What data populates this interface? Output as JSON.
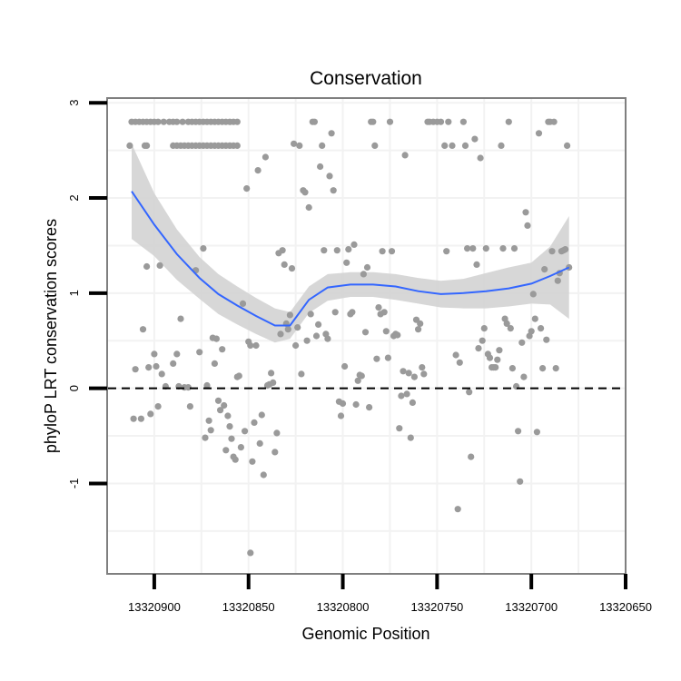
{
  "chart_data": {
    "type": "scatter",
    "title": "Conservation",
    "xlabel": "Genomic Position",
    "ylabel": "phyloP LRT conservation scores",
    "x_reversed": true,
    "xlim": [
      13320925,
      13320650
    ],
    "ylim": [
      -1.95,
      3.05
    ],
    "x_ticks": [
      13320900,
      13320850,
      13320800,
      13320750,
      13320700,
      13320650
    ],
    "x_tick_labels": [
      "13320900",
      "13320850",
      "13320800",
      "13320750",
      "13320700",
      "13320650"
    ],
    "y_ticks": [
      -1,
      0,
      1,
      2,
      3
    ],
    "y_tick_labels": [
      "-1",
      "0",
      "1",
      "2",
      "3"
    ],
    "grid": true,
    "colors": {
      "points": "#9a9a9a",
      "smooth": "#3366ff",
      "ribbon": "#d3d3d3",
      "reference": "#000000",
      "frame": "#7f7f7f",
      "grid": "#f2f2f2"
    },
    "reference_line": {
      "y": 0,
      "style": "dashed"
    },
    "points": [
      [
        13320912,
        2.8
      ],
      [
        13320910,
        2.8
      ],
      [
        13320908,
        2.8
      ],
      [
        13320906,
        2.8
      ],
      [
        13320904,
        2.8
      ],
      [
        13320902,
        2.8
      ],
      [
        13320900,
        2.8
      ],
      [
        13320898,
        2.8
      ],
      [
        13320895,
        2.8
      ],
      [
        13320892,
        2.8
      ],
      [
        13320890,
        2.8
      ],
      [
        13320888,
        2.8
      ],
      [
        13320885,
        2.8
      ],
      [
        13320882,
        2.8
      ],
      [
        13320880,
        2.8
      ],
      [
        13320878,
        2.8
      ],
      [
        13320876,
        2.8
      ],
      [
        13320874,
        2.8
      ],
      [
        13320872,
        2.8
      ],
      [
        13320870,
        2.8
      ],
      [
        13320868,
        2.8
      ],
      [
        13320866,
        2.8
      ],
      [
        13320864,
        2.8
      ],
      [
        13320862,
        2.8
      ],
      [
        13320860,
        2.8
      ],
      [
        13320858,
        2.8
      ],
      [
        13320856,
        2.8
      ],
      [
        13320913,
        2.55
      ],
      [
        13320905,
        2.55
      ],
      [
        13320904,
        2.55
      ],
      [
        13320890,
        2.55
      ],
      [
        13320888,
        2.55
      ],
      [
        13320886,
        2.55
      ],
      [
        13320884,
        2.55
      ],
      [
        13320882,
        2.55
      ],
      [
        13320880,
        2.55
      ],
      [
        13320878,
        2.55
      ],
      [
        13320876,
        2.55
      ],
      [
        13320874,
        2.55
      ],
      [
        13320872,
        2.55
      ],
      [
        13320870,
        2.55
      ],
      [
        13320868,
        2.55
      ],
      [
        13320866,
        2.55
      ],
      [
        13320864,
        2.55
      ],
      [
        13320862,
        2.55
      ],
      [
        13320860,
        2.55
      ],
      [
        13320858,
        2.55
      ],
      [
        13320856,
        2.55
      ],
      [
        13320911,
        -0.32
      ],
      [
        13320910,
        0.2
      ],
      [
        13320907,
        -0.32
      ],
      [
        13320906,
        0.62
      ],
      [
        13320904,
        1.28
      ],
      [
        13320903,
        0.22
      ],
      [
        13320902,
        -0.27
      ],
      [
        13320900,
        0.36
      ],
      [
        13320899,
        0.23
      ],
      [
        13320898,
        -0.19
      ],
      [
        13320897,
        1.29
      ],
      [
        13320896,
        0.15
      ],
      [
        13320894,
        0.02
      ],
      [
        13320890,
        0.26
      ],
      [
        13320888,
        0.36
      ],
      [
        13320887,
        0.02
      ],
      [
        13320886,
        0.73
      ],
      [
        13320884,
        0.01
      ],
      [
        13320882,
        0.01
      ],
      [
        13320881,
        -0.19
      ],
      [
        13320878,
        1.24
      ],
      [
        13320876,
        0.38
      ],
      [
        13320874,
        1.47
      ],
      [
        13320873,
        -0.52
      ],
      [
        13320872,
        0.03
      ],
      [
        13320871,
        -0.34
      ],
      [
        13320870,
        -0.44
      ],
      [
        13320869,
        0.53
      ],
      [
        13320868,
        0.26
      ],
      [
        13320867,
        0.52
      ],
      [
        13320866,
        -0.13
      ],
      [
        13320865,
        -0.23
      ],
      [
        13320864,
        0.41
      ],
      [
        13320863,
        -0.18
      ],
      [
        13320862,
        -0.65
      ],
      [
        13320861,
        -0.29
      ],
      [
        13320860,
        -0.4
      ],
      [
        13320859,
        -0.53
      ],
      [
        13320858,
        -0.72
      ],
      [
        13320857,
        -0.75
      ],
      [
        13320856,
        0.12
      ],
      [
        13320855,
        0.13
      ],
      [
        13320854,
        -0.62
      ],
      [
        13320853,
        0.89
      ],
      [
        13320852,
        -0.45
      ],
      [
        13320851,
        2.1
      ],
      [
        13320850,
        0.49
      ],
      [
        13320849,
        0.45
      ],
      [
        13320848,
        -0.77
      ],
      [
        13320847,
        -0.36
      ],
      [
        13320846,
        0.45
      ],
      [
        13320845,
        2.29
      ],
      [
        13320844,
        -0.58
      ],
      [
        13320843,
        -0.28
      ],
      [
        13320842,
        -0.91
      ],
      [
        13320841,
        2.43
      ],
      [
        13320840,
        0.03
      ],
      [
        13320839,
        0.04
      ],
      [
        13320838,
        0.16
      ],
      [
        13320837,
        0.06
      ],
      [
        13320836,
        -0.67
      ],
      [
        13320835,
        -0.47
      ],
      [
        13320834,
        1.42
      ],
      [
        13320833,
        0.57
      ],
      [
        13320832,
        1.45
      ],
      [
        13320831,
        1.3
      ],
      [
        13320830,
        0.68
      ],
      [
        13320829,
        0.62
      ],
      [
        13320828,
        0.77
      ],
      [
        13320827,
        1.26
      ],
      [
        13320826,
        2.57
      ],
      [
        13320825,
        0.45
      ],
      [
        13320824,
        0.64
      ],
      [
        13320823,
        2.55
      ],
      [
        13320822,
        0.15
      ],
      [
        13320821,
        2.08
      ],
      [
        13320820,
        2.06
      ],
      [
        13320819,
        0.5
      ],
      [
        13320818,
        1.9
      ],
      [
        13320817,
        0.78
      ],
      [
        13320816,
        2.8
      ],
      [
        13320815,
        2.8
      ],
      [
        13320814,
        0.55
      ],
      [
        13320813,
        0.67
      ],
      [
        13320812,
        2.33
      ],
      [
        13320811,
        2.55
      ],
      [
        13320810,
        1.45
      ],
      [
        13320809,
        0.57
      ],
      [
        13320808,
        0.52
      ],
      [
        13320807,
        2.23
      ],
      [
        13320806,
        2.68
      ],
      [
        13320805,
        2.08
      ],
      [
        13320804,
        0.8
      ],
      [
        13320803,
        1.45
      ],
      [
        13320802,
        -0.14
      ],
      [
        13320801,
        -0.29
      ],
      [
        13320800,
        -0.16
      ],
      [
        13320799,
        0.23
      ],
      [
        13320798,
        1.32
      ],
      [
        13320797,
        1.46
      ],
      [
        13320796,
        0.78
      ],
      [
        13320795,
        0.8
      ],
      [
        13320794,
        1.51
      ],
      [
        13320793,
        -0.17
      ],
      [
        13320792,
        0.08
      ],
      [
        13320791,
        0.14
      ],
      [
        13320790,
        0.13
      ],
      [
        13320789,
        1.2
      ],
      [
        13320788,
        0.59
      ],
      [
        13320787,
        1.27
      ],
      [
        13320786,
        -0.2
      ],
      [
        13320785,
        2.8
      ],
      [
        13320784,
        2.8
      ],
      [
        13320783,
        2.55
      ],
      [
        13320782,
        0.31
      ],
      [
        13320781,
        0.85
      ],
      [
        13320780,
        0.78
      ],
      [
        13320779,
        1.44
      ],
      [
        13320778,
        0.8
      ],
      [
        13320777,
        0.6
      ],
      [
        13320776,
        0.32
      ],
      [
        13320775,
        2.8
      ],
      [
        13320774,
        1.44
      ],
      [
        13320773,
        0.55
      ],
      [
        13320772,
        0.57
      ],
      [
        13320771,
        0.56
      ],
      [
        13320770,
        -0.42
      ],
      [
        13320769,
        -0.08
      ],
      [
        13320768,
        0.18
      ],
      [
        13320767,
        2.45
      ],
      [
        13320766,
        -0.06
      ],
      [
        13320765,
        0.16
      ],
      [
        13320764,
        -0.52
      ],
      [
        13320763,
        -0.15
      ],
      [
        13320762,
        0.12
      ],
      [
        13320761,
        0.72
      ],
      [
        13320760,
        0.62
      ],
      [
        13320759,
        0.68
      ],
      [
        13320758,
        0.22
      ],
      [
        13320757,
        0.15
      ],
      [
        13320755,
        2.8
      ],
      [
        13320754,
        2.8
      ],
      [
        13320752,
        2.8
      ],
      [
        13320750,
        2.8
      ],
      [
        13320748,
        2.8
      ],
      [
        13320746,
        2.55
      ],
      [
        13320745,
        1.44
      ],
      [
        13320744,
        2.8
      ],
      [
        13320742,
        2.55
      ],
      [
        13320740,
        0.35
      ],
      [
        13320739,
        -1.27
      ],
      [
        13320738,
        0.27
      ],
      [
        13320736,
        2.8
      ],
      [
        13320735,
        2.55
      ],
      [
        13320734,
        1.47
      ],
      [
        13320733,
        -0.04
      ],
      [
        13320732,
        -0.72
      ],
      [
        13320731,
        1.47
      ],
      [
        13320730,
        2.62
      ],
      [
        13320729,
        1.3
      ],
      [
        13320728,
        0.42
      ],
      [
        13320727,
        2.42
      ],
      [
        13320726,
        0.5
      ],
      [
        13320725,
        0.63
      ],
      [
        13320724,
        1.47
      ],
      [
        13320723,
        0.36
      ],
      [
        13320722,
        0.32
      ],
      [
        13320721,
        0.22
      ],
      [
        13320720,
        0.22
      ],
      [
        13320719,
        0.22
      ],
      [
        13320718,
        0.3
      ],
      [
        13320717,
        0.4
      ],
      [
        13320716,
        2.55
      ],
      [
        13320715,
        1.47
      ],
      [
        13320714,
        0.73
      ],
      [
        13320713,
        0.68
      ],
      [
        13320712,
        2.8
      ],
      [
        13320711,
        0.63
      ],
      [
        13320710,
        0.21
      ],
      [
        13320709,
        1.47
      ],
      [
        13320708,
        0.02
      ],
      [
        13320707,
        -0.45
      ],
      [
        13320706,
        -0.98
      ],
      [
        13320705,
        0.48
      ],
      [
        13320704,
        0.12
      ],
      [
        13320703,
        1.85
      ],
      [
        13320702,
        1.71
      ],
      [
        13320701,
        0.55
      ],
      [
        13320700,
        0.6
      ],
      [
        13320699,
        0.99
      ],
      [
        13320698,
        0.73
      ],
      [
        13320697,
        -0.46
      ],
      [
        13320696,
        2.68
      ],
      [
        13320695,
        0.63
      ],
      [
        13320694,
        0.21
      ],
      [
        13320693,
        1.25
      ],
      [
        13320692,
        0.51
      ],
      [
        13320691,
        2.8
      ],
      [
        13320690,
        2.8
      ],
      [
        13320689,
        1.44
      ],
      [
        13320688,
        2.8
      ],
      [
        13320687,
        0.21
      ],
      [
        13320686,
        1.13
      ],
      [
        13320685,
        1.21
      ],
      [
        13320684,
        1.44
      ],
      [
        13320683,
        1.45
      ],
      [
        13320682,
        1.46
      ],
      [
        13320681,
        2.55
      ],
      [
        13320680,
        1.27
      ],
      [
        13320849,
        -1.73
      ]
    ],
    "smooth": {
      "method": "loess",
      "x": [
        13320912,
        13320900,
        13320888,
        13320876,
        13320866,
        13320856,
        13320846,
        13320836,
        13320828,
        13320818,
        13320808,
        13320796,
        13320784,
        13320772,
        13320760,
        13320748,
        13320736,
        13320724,
        13320712,
        13320700,
        13320690,
        13320680
      ],
      "y": [
        2.07,
        1.72,
        1.41,
        1.16,
        0.99,
        0.87,
        0.76,
        0.66,
        0.66,
        0.93,
        1.06,
        1.09,
        1.09,
        1.07,
        1.02,
        0.99,
        1.0,
        1.02,
        1.05,
        1.1,
        1.18,
        1.27
      ],
      "lower": [
        1.57,
        1.39,
        1.14,
        0.94,
        0.78,
        0.67,
        0.57,
        0.48,
        0.52,
        0.79,
        0.92,
        0.96,
        0.96,
        0.93,
        0.89,
        0.85,
        0.84,
        0.84,
        0.86,
        0.89,
        0.88,
        0.73
      ],
      "upper": [
        2.57,
        2.05,
        1.67,
        1.38,
        1.2,
        1.07,
        0.95,
        0.84,
        0.8,
        1.07,
        1.2,
        1.22,
        1.22,
        1.2,
        1.16,
        1.13,
        1.15,
        1.21,
        1.27,
        1.32,
        1.49,
        1.81
      ]
    }
  }
}
